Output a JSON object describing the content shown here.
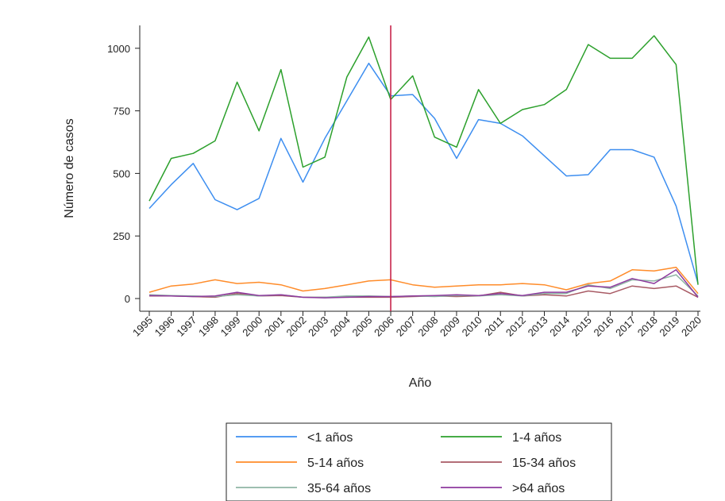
{
  "chart_data": {
    "type": "line",
    "title": "",
    "xlabel": "Año",
    "ylabel": "Número de casos",
    "ylim": [
      0,
      1100
    ],
    "yticks": [
      0,
      250,
      500,
      750,
      1000
    ],
    "x": [
      1995,
      1996,
      1997,
      1998,
      1999,
      2000,
      2001,
      2002,
      2003,
      2004,
      2005,
      2006,
      2007,
      2008,
      2009,
      2010,
      2011,
      2012,
      2013,
      2014,
      2015,
      2016,
      2017,
      2018,
      2019,
      2020
    ],
    "grid": false,
    "legend_position": "bottom",
    "reference_line": {
      "x": 2006,
      "color": "#c8234b"
    },
    "series": [
      {
        "name": "<1 años",
        "color": "#3d8ef0",
        "values": [
          360,
          455,
          540,
          395,
          355,
          400,
          640,
          465,
          640,
          790,
          940,
          810,
          815,
          720,
          560,
          715,
          700,
          650,
          570,
          490,
          495,
          595,
          595,
          565,
          370,
          60
        ]
      },
      {
        "name": "1-4 años",
        "color": "#2ca02c",
        "values": [
          390,
          560,
          580,
          630,
          865,
          670,
          915,
          525,
          565,
          885,
          1045,
          795,
          890,
          645,
          605,
          835,
          700,
          755,
          775,
          835,
          1015,
          960,
          960,
          1050,
          935,
          55
        ]
      },
      {
        "name": "5-14 años",
        "color": "#ff8c2a",
        "values": [
          25,
          50,
          58,
          75,
          60,
          65,
          55,
          30,
          40,
          55,
          70,
          75,
          55,
          45,
          50,
          55,
          55,
          60,
          55,
          35,
          60,
          70,
          115,
          110,
          125,
          20
        ]
      },
      {
        "name": "15-34 años",
        "color": "#a85a64",
        "values": [
          10,
          10,
          8,
          5,
          20,
          10,
          12,
          5,
          5,
          5,
          5,
          5,
          8,
          10,
          8,
          10,
          25,
          10,
          15,
          10,
          30,
          20,
          50,
          40,
          50,
          5
        ]
      },
      {
        "name": "35-64 años",
        "color": "#8fb5a4",
        "values": [
          15,
          12,
          10,
          8,
          15,
          10,
          15,
          5,
          5,
          10,
          10,
          8,
          10,
          8,
          12,
          10,
          15,
          10,
          20,
          20,
          55,
          40,
          75,
          70,
          95,
          10
        ]
      },
      {
        "name": ">64 años",
        "color": "#8e3a9e",
        "values": [
          12,
          10,
          8,
          10,
          25,
          12,
          15,
          5,
          3,
          5,
          8,
          8,
          10,
          12,
          15,
          12,
          20,
          12,
          25,
          25,
          50,
          45,
          80,
          60,
          115,
          5
        ]
      }
    ]
  }
}
